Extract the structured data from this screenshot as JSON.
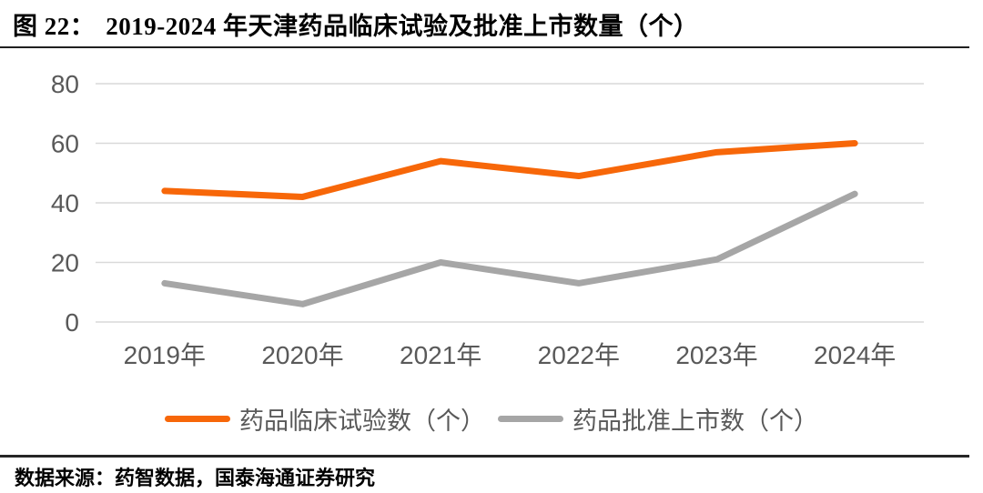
{
  "header": {
    "figure_label": "图 22：",
    "title": "2019-2024 年天津药品临床试验及批准上市数量（个）"
  },
  "footer": {
    "source": "数据来源：药智数据，国泰海通证券研究"
  },
  "colors": {
    "clinical_line": "#F76709",
    "approval_line": "#A6A6A6",
    "gridline": "#D9D9D9",
    "axis_text": "#595959",
    "rule": "#1f1f1f"
  },
  "chart_data": {
    "type": "line",
    "title": "2019-2024 年天津药品临床试验及批准上市数量（个）",
    "categories": [
      "2019年",
      "2020年",
      "2021年",
      "2022年",
      "2023年",
      "2024年"
    ],
    "series": [
      {
        "name": "药品临床试验数（个）",
        "color": "#F76709",
        "values": [
          44,
          42,
          54,
          49,
          57,
          60
        ]
      },
      {
        "name": "药品批准上市数（个）",
        "color": "#A6A6A6",
        "values": [
          13,
          6,
          20,
          13,
          21,
          43
        ]
      }
    ],
    "xlabel": "",
    "ylabel": "",
    "ylim": [
      0,
      80
    ],
    "yticks": [
      0,
      20,
      40,
      60,
      80
    ],
    "grid": true,
    "legend_position": "bottom"
  }
}
